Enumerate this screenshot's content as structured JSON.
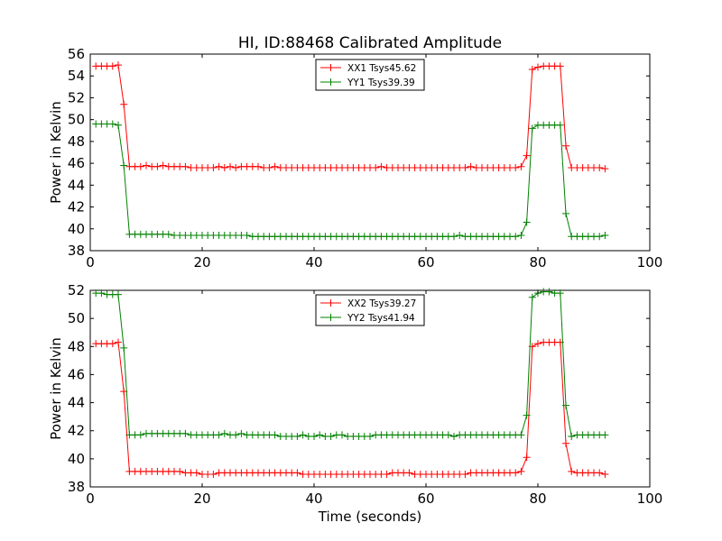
{
  "figure": {
    "title": "HI, ID:88468 Calibrated Amplitude"
  },
  "chart_data": [
    {
      "type": "line",
      "title": "HI, ID:88468 Calibrated Amplitude",
      "xlabel": "",
      "ylabel": "Power in Kelvin",
      "xlim": [
        0,
        100
      ],
      "ylim": [
        38,
        56
      ],
      "xticks": [
        0,
        20,
        40,
        60,
        80,
        100
      ],
      "yticks": [
        38,
        40,
        42,
        44,
        46,
        48,
        50,
        52,
        54,
        56
      ],
      "legend": "upper center",
      "grid": false,
      "x": [
        1,
        2,
        3,
        4,
        5,
        6,
        7,
        8,
        9,
        10,
        11,
        12,
        13,
        14,
        15,
        16,
        17,
        18,
        19,
        20,
        21,
        22,
        23,
        24,
        25,
        26,
        27,
        28,
        29,
        30,
        31,
        32,
        33,
        34,
        35,
        36,
        37,
        38,
        39,
        40,
        41,
        42,
        43,
        44,
        45,
        46,
        47,
        48,
        49,
        50,
        51,
        52,
        53,
        54,
        55,
        56,
        57,
        58,
        59,
        60,
        61,
        62,
        63,
        64,
        65,
        66,
        67,
        68,
        69,
        70,
        71,
        72,
        73,
        74,
        75,
        76,
        77,
        78,
        79,
        80,
        81,
        82,
        83,
        84,
        85,
        86,
        87,
        88,
        89,
        90,
        91,
        92
      ],
      "series": [
        {
          "name": "XX1 Tsys45.62",
          "color": "#ff0000",
          "values": [
            54.9,
            54.9,
            54.9,
            54.9,
            55.0,
            51.4,
            45.7,
            45.7,
            45.7,
            45.8,
            45.7,
            45.7,
            45.8,
            45.7,
            45.7,
            45.7,
            45.7,
            45.6,
            45.6,
            45.6,
            45.6,
            45.6,
            45.7,
            45.6,
            45.7,
            45.6,
            45.7,
            45.7,
            45.7,
            45.7,
            45.6,
            45.6,
            45.7,
            45.6,
            45.6,
            45.6,
            45.6,
            45.6,
            45.6,
            45.6,
            45.6,
            45.6,
            45.6,
            45.6,
            45.6,
            45.6,
            45.6,
            45.6,
            45.6,
            45.6,
            45.6,
            45.7,
            45.6,
            45.6,
            45.6,
            45.6,
            45.6,
            45.6,
            45.6,
            45.6,
            45.6,
            45.6,
            45.6,
            45.6,
            45.6,
            45.6,
            45.6,
            45.7,
            45.6,
            45.6,
            45.6,
            45.6,
            45.6,
            45.6,
            45.6,
            45.6,
            45.7,
            46.7,
            54.6,
            54.8,
            54.9,
            54.9,
            54.9,
            54.9,
            47.6,
            45.6,
            45.6,
            45.6,
            45.6,
            45.6,
            45.6,
            45.5
          ]
        },
        {
          "name": "YY1 Tsys39.39",
          "color": "#008000",
          "values": [
            49.6,
            49.6,
            49.6,
            49.6,
            49.5,
            45.8,
            39.5,
            39.5,
            39.5,
            39.5,
            39.5,
            39.5,
            39.5,
            39.5,
            39.4,
            39.4,
            39.4,
            39.4,
            39.4,
            39.4,
            39.4,
            39.4,
            39.4,
            39.4,
            39.4,
            39.4,
            39.4,
            39.4,
            39.3,
            39.3,
            39.3,
            39.3,
            39.3,
            39.3,
            39.3,
            39.3,
            39.3,
            39.3,
            39.3,
            39.3,
            39.3,
            39.3,
            39.3,
            39.3,
            39.3,
            39.3,
            39.3,
            39.3,
            39.3,
            39.3,
            39.3,
            39.3,
            39.3,
            39.3,
            39.3,
            39.3,
            39.3,
            39.3,
            39.3,
            39.3,
            39.3,
            39.3,
            39.3,
            39.3,
            39.3,
            39.4,
            39.3,
            39.3,
            39.3,
            39.3,
            39.3,
            39.3,
            39.3,
            39.3,
            39.3,
            39.3,
            39.4,
            40.6,
            49.2,
            49.5,
            49.5,
            49.5,
            49.5,
            49.5,
            41.4,
            39.3,
            39.3,
            39.3,
            39.3,
            39.3,
            39.3,
            39.4
          ]
        }
      ]
    },
    {
      "type": "line",
      "title": "",
      "xlabel": "Time (seconds)",
      "ylabel": "Power in Kelvin",
      "xlim": [
        0,
        100
      ],
      "ylim": [
        38,
        52
      ],
      "xticks": [
        0,
        20,
        40,
        60,
        80,
        100
      ],
      "yticks": [
        38,
        40,
        42,
        44,
        46,
        48,
        50,
        52
      ],
      "legend": "upper center",
      "grid": false,
      "x": [
        1,
        2,
        3,
        4,
        5,
        6,
        7,
        8,
        9,
        10,
        11,
        12,
        13,
        14,
        15,
        16,
        17,
        18,
        19,
        20,
        21,
        22,
        23,
        24,
        25,
        26,
        27,
        28,
        29,
        30,
        31,
        32,
        33,
        34,
        35,
        36,
        37,
        38,
        39,
        40,
        41,
        42,
        43,
        44,
        45,
        46,
        47,
        48,
        49,
        50,
        51,
        52,
        53,
        54,
        55,
        56,
        57,
        58,
        59,
        60,
        61,
        62,
        63,
        64,
        65,
        66,
        67,
        68,
        69,
        70,
        71,
        72,
        73,
        74,
        75,
        76,
        77,
        78,
        79,
        80,
        81,
        82,
        83,
        84,
        85,
        86,
        87,
        88,
        89,
        90,
        91,
        92
      ],
      "series": [
        {
          "name": "XX2 Tsys39.27",
          "color": "#ff0000",
          "values": [
            48.2,
            48.2,
            48.2,
            48.2,
            48.3,
            44.8,
            39.1,
            39.1,
            39.1,
            39.1,
            39.1,
            39.1,
            39.1,
            39.1,
            39.1,
            39.1,
            39.0,
            39.0,
            39.0,
            38.9,
            38.9,
            38.9,
            39.0,
            39.0,
            39.0,
            39.0,
            39.0,
            39.0,
            39.0,
            39.0,
            39.0,
            39.0,
            39.0,
            39.0,
            39.0,
            39.0,
            39.0,
            38.9,
            38.9,
            38.9,
            38.9,
            38.9,
            38.9,
            38.9,
            38.9,
            38.9,
            38.9,
            38.9,
            38.9,
            38.9,
            38.9,
            38.9,
            38.9,
            39.0,
            39.0,
            39.0,
            39.0,
            38.9,
            38.9,
            38.9,
            38.9,
            38.9,
            38.9,
            38.9,
            38.9,
            38.9,
            38.9,
            39.0,
            39.0,
            39.0,
            39.0,
            39.0,
            39.0,
            39.0,
            39.0,
            39.0,
            39.1,
            40.1,
            48.0,
            48.2,
            48.3,
            48.3,
            48.3,
            48.3,
            41.1,
            39.1,
            39.0,
            39.0,
            39.0,
            39.0,
            39.0,
            38.9
          ]
        },
        {
          "name": "YY2 Tsys41.94",
          "color": "#008000",
          "values": [
            51.8,
            51.8,
            51.7,
            51.7,
            51.7,
            47.9,
            41.7,
            41.7,
            41.7,
            41.8,
            41.8,
            41.8,
            41.8,
            41.8,
            41.8,
            41.8,
            41.8,
            41.7,
            41.7,
            41.7,
            41.7,
            41.7,
            41.7,
            41.8,
            41.7,
            41.7,
            41.8,
            41.7,
            41.7,
            41.7,
            41.7,
            41.7,
            41.7,
            41.6,
            41.6,
            41.6,
            41.6,
            41.7,
            41.6,
            41.6,
            41.7,
            41.6,
            41.6,
            41.7,
            41.7,
            41.6,
            41.6,
            41.6,
            41.6,
            41.6,
            41.7,
            41.7,
            41.7,
            41.7,
            41.7,
            41.7,
            41.7,
            41.7,
            41.7,
            41.7,
            41.7,
            41.7,
            41.7,
            41.7,
            41.6,
            41.7,
            41.7,
            41.7,
            41.7,
            41.7,
            41.7,
            41.7,
            41.7,
            41.7,
            41.7,
            41.7,
            41.7,
            43.1,
            51.5,
            51.8,
            51.9,
            51.9,
            51.8,
            51.8,
            43.8,
            41.6,
            41.7,
            41.7,
            41.7,
            41.7,
            41.7,
            41.7
          ]
        }
      ]
    }
  ]
}
